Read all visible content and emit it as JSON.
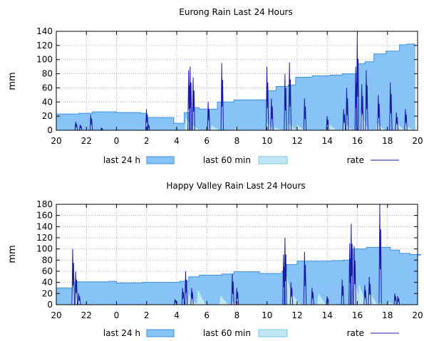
{
  "chart_data": [
    {
      "type": "area",
      "title": "Eurong Rain Last 24 Hours",
      "ylabel": "mm",
      "xlabel": "",
      "ylim": [
        0,
        140
      ],
      "yticks": [
        "0",
        "20",
        "40",
        "60",
        "80",
        "100",
        "120",
        "140"
      ],
      "xlim": [
        20,
        44
      ],
      "xtick_values": [
        20,
        22,
        24,
        26,
        28,
        30,
        32,
        34,
        36,
        38,
        40,
        42,
        44
      ],
      "xtick_labels": [
        "20",
        "22",
        "0",
        "2",
        "4",
        "6",
        "8",
        "10",
        "12",
        "14",
        "16",
        "18",
        "20"
      ],
      "grid": true,
      "legend": {
        "placement": "bottom",
        "entries": [
          "last 24 h",
          "last 60 min",
          "rate"
        ]
      },
      "colors": {
        "last_24h": "#87c3f7",
        "last_24h_edge": "#3d8fe0",
        "last_60min": "#bfe6f2",
        "last_60min_edge": "#7fc7de",
        "rate": "#1a1aa8"
      },
      "series": [
        {
          "name": "last 24 h",
          "style": "step",
          "points": [
            [
              20.0,
              23
            ],
            [
              21.5,
              24
            ],
            [
              22.4,
              26
            ],
            [
              24.0,
              25
            ],
            [
              25.6,
              24
            ],
            [
              26.0,
              18
            ],
            [
              27.8,
              10
            ],
            [
              28.5,
              25
            ],
            [
              28.9,
              32
            ],
            [
              29.5,
              30
            ],
            [
              30.7,
              40
            ],
            [
              31.8,
              43
            ],
            [
              34.0,
              56
            ],
            [
              34.6,
              62
            ],
            [
              35.4,
              64
            ],
            [
              35.9,
              75
            ],
            [
              37.0,
              77
            ],
            [
              38.2,
              78
            ],
            [
              39.0,
              80
            ],
            [
              40.0,
              94
            ],
            [
              40.5,
              97
            ],
            [
              41.1,
              108
            ],
            [
              41.9,
              112
            ],
            [
              42.8,
              121
            ],
            [
              43.3,
              122
            ],
            [
              43.8,
              120
            ]
          ]
        },
        {
          "name": "last 60 min",
          "style": "peaks",
          "peaks": [
            [
              28.6,
              20
            ],
            [
              29.0,
              10
            ],
            [
              30.3,
              8
            ],
            [
              31.8,
              2
            ],
            [
              34.0,
              12
            ],
            [
              34.5,
              5
            ],
            [
              35.4,
              12
            ],
            [
              36.0,
              8
            ],
            [
              38.1,
              10
            ],
            [
              39.1,
              14
            ],
            [
              40.2,
              28
            ],
            [
              41.3,
              12
            ],
            [
              42.6,
              12
            ],
            [
              43.2,
              8
            ]
          ]
        },
        {
          "name": "rate",
          "style": "spikes",
          "spikes": [
            [
              21.3,
              12
            ],
            [
              21.6,
              8
            ],
            [
              22.3,
              22
            ],
            [
              23.0,
              3
            ],
            [
              26.0,
              30
            ],
            [
              26.1,
              10
            ],
            [
              28.8,
              85
            ],
            [
              28.9,
              90
            ],
            [
              29.1,
              75
            ],
            [
              30.1,
              40
            ],
            [
              31.0,
              95
            ],
            [
              34.0,
              90
            ],
            [
              34.3,
              45
            ],
            [
              35.2,
              80
            ],
            [
              35.5,
              96
            ],
            [
              36.5,
              45
            ],
            [
              38.0,
              20
            ],
            [
              39.1,
              30
            ],
            [
              39.3,
              60
            ],
            [
              39.9,
              90
            ],
            [
              40.0,
              135
            ],
            [
              40.3,
              65
            ],
            [
              40.6,
              85
            ],
            [
              41.4,
              50
            ],
            [
              42.2,
              68
            ],
            [
              42.6,
              25
            ],
            [
              43.2,
              30
            ]
          ]
        }
      ]
    },
    {
      "type": "area",
      "title": "Happy Valley Rain Last 24 Hours",
      "ylabel": "mm",
      "xlabel": "",
      "ylim": [
        0,
        180
      ],
      "yticks": [
        "0",
        "20",
        "40",
        "60",
        "80",
        "100",
        "120",
        "140",
        "160",
        "180"
      ],
      "xlim": [
        20,
        44
      ],
      "xtick_values": [
        20,
        22,
        24,
        26,
        28,
        30,
        32,
        34,
        36,
        38,
        40,
        42,
        44
      ],
      "xtick_labels": [
        "20",
        "22",
        "0",
        "2",
        "4",
        "6",
        "8",
        "10",
        "12",
        "14",
        "16",
        "18",
        "20"
      ],
      "grid": true,
      "legend": {
        "placement": "bottom",
        "entries": [
          "last 24 h",
          "last 60 min",
          "rate"
        ]
      },
      "colors": {
        "last_24h": "#87c3f7",
        "last_24h_edge": "#3d8fe0",
        "last_60min": "#bfe6f2",
        "last_60min_edge": "#7fc7de",
        "rate": "#1a1aa8"
      },
      "series": [
        {
          "name": "last 24 h",
          "style": "step",
          "points": [
            [
              20.0,
              30
            ],
            [
              21.1,
              40
            ],
            [
              21.4,
              41
            ],
            [
              23.5,
              42
            ],
            [
              24.0,
              39
            ],
            [
              25.7,
              40
            ],
            [
              28.2,
              42
            ],
            [
              28.8,
              50
            ],
            [
              29.5,
              53
            ],
            [
              31.0,
              55
            ],
            [
              31.8,
              59
            ],
            [
              33.5,
              56
            ],
            [
              35.0,
              60
            ],
            [
              35.3,
              72
            ],
            [
              36.0,
              78
            ],
            [
              38.3,
              79
            ],
            [
              39.1,
              80
            ],
            [
              39.7,
              100
            ],
            [
              40.6,
              103
            ],
            [
              42.2,
              98
            ],
            [
              42.8,
              92
            ],
            [
              43.5,
              90
            ],
            [
              44.2,
              89
            ]
          ]
        },
        {
          "name": "last 60 min",
          "style": "peaks",
          "peaks": [
            [
              21.1,
              35
            ],
            [
              22.5,
              2
            ],
            [
              28.8,
              20
            ],
            [
              29.4,
              30
            ],
            [
              30.9,
              18
            ],
            [
              31.7,
              5
            ],
            [
              35.3,
              55
            ],
            [
              35.7,
              20
            ],
            [
              37.4,
              22
            ],
            [
              38.0,
              3
            ],
            [
              39.7,
              60
            ],
            [
              40.1,
              40
            ],
            [
              40.8,
              25
            ],
            [
              41.4,
              5
            ],
            [
              42.1,
              5
            ],
            [
              42.6,
              3
            ]
          ]
        },
        {
          "name": "rate",
          "style": "spikes",
          "spikes": [
            [
              21.1,
              100
            ],
            [
              21.3,
              60
            ],
            [
              21.5,
              20
            ],
            [
              27.9,
              10
            ],
            [
              28.4,
              30
            ],
            [
              28.6,
              60
            ],
            [
              29.0,
              30
            ],
            [
              31.7,
              55
            ],
            [
              32.0,
              30
            ],
            [
              35.1,
              90
            ],
            [
              35.2,
              120
            ],
            [
              35.6,
              40
            ],
            [
              36.5,
              95
            ],
            [
              37.0,
              30
            ],
            [
              38.0,
              15
            ],
            [
              39.0,
              45
            ],
            [
              39.5,
              110
            ],
            [
              39.6,
              145
            ],
            [
              39.8,
              105
            ],
            [
              40.5,
              35
            ],
            [
              40.8,
              50
            ],
            [
              41.5,
              180
            ],
            [
              42.5,
              20
            ],
            [
              42.7,
              15
            ]
          ]
        }
      ]
    }
  ]
}
